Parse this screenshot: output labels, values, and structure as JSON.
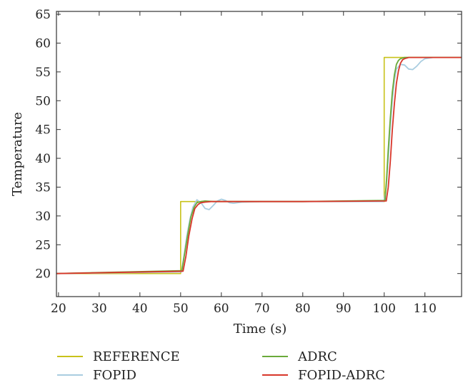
{
  "chart_data": {
    "type": "line",
    "xlabel": "Time (s)",
    "ylabel": "Temperature",
    "xlim": [
      19.5,
      119
    ],
    "ylim": [
      16,
      65.5
    ],
    "xticks": [
      20,
      30,
      40,
      50,
      60,
      70,
      80,
      90,
      100,
      110
    ],
    "yticks": [
      20,
      25,
      30,
      35,
      40,
      45,
      50,
      55,
      60,
      65
    ],
    "grid": false,
    "legend_position": "bottom",
    "series": [
      {
        "name": "REFERENCE",
        "color": "#c8c21a",
        "x": [
          19.5,
          50.0,
          50.0,
          100.0,
          100.0,
          119
        ],
        "y": [
          20.0,
          20.0,
          32.5,
          32.5,
          57.5,
          57.5
        ]
      },
      {
        "name": "FOPID",
        "color": "#a9cde0",
        "x": [
          19.5,
          50.2,
          50.8,
          51.5,
          52.3,
          53.0,
          54.0,
          55.0,
          56.0,
          57.0,
          58.0,
          59.0,
          60.0,
          61.0,
          62.0,
          63.0,
          65.0,
          70.0,
          80.0,
          90.0,
          99.8,
          100.0,
          100.5,
          101.0,
          101.5,
          102.0,
          102.5,
          103.0,
          104.0,
          105.0,
          106.0,
          107.0,
          108.0,
          109.0,
          110.0,
          112.0,
          115.0,
          119.0
        ],
        "y": [
          20.0,
          20.3,
          23.0,
          26.5,
          29.5,
          31.5,
          32.8,
          32.3,
          31.3,
          31.1,
          31.8,
          32.6,
          32.9,
          32.7,
          32.3,
          32.2,
          32.4,
          32.5,
          32.5,
          32.5,
          32.5,
          32.8,
          35.0,
          40.0,
          45.5,
          50.0,
          53.5,
          55.5,
          56.3,
          56.2,
          55.5,
          55.4,
          56.0,
          56.8,
          57.3,
          57.5,
          57.5,
          57.5
        ]
      },
      {
        "name": "ADRC",
        "color": "#6aaa3a",
        "x": [
          19.5,
          50.3,
          51.0,
          51.8,
          52.5,
          53.3,
          54.0,
          55.0,
          56.0,
          58.0,
          65.0,
          80.0,
          100.2,
          100.6,
          101.0,
          101.5,
          102.0,
          102.5,
          103.0,
          103.5,
          104.0,
          105.0,
          107.0,
          119.0
        ],
        "y": [
          20.0,
          20.5,
          23.5,
          27.0,
          29.8,
          31.5,
          32.3,
          32.5,
          32.6,
          32.5,
          32.5,
          32.5,
          32.7,
          36.5,
          41.5,
          47.0,
          51.5,
          54.5,
          56.3,
          57.0,
          57.3,
          57.5,
          57.5,
          57.5
        ]
      },
      {
        "name": "FOPID-ADRC",
        "color": "#d8362a",
        "x": [
          19.5,
          50.6,
          51.3,
          52.0,
          52.8,
          53.5,
          54.3,
          55.0,
          56.0,
          57.5,
          65.0,
          80.0,
          100.5,
          101.0,
          101.5,
          102.0,
          102.5,
          103.0,
          103.5,
          104.0,
          104.5,
          105.0,
          106.0,
          108.0,
          119.0
        ],
        "y": [
          20.0,
          20.4,
          23.0,
          26.5,
          29.5,
          31.3,
          32.0,
          32.3,
          32.4,
          32.5,
          32.5,
          32.5,
          32.6,
          35.0,
          39.5,
          45.0,
          49.5,
          53.0,
          55.2,
          56.5,
          57.1,
          57.3,
          57.5,
          57.5,
          57.5
        ]
      }
    ]
  }
}
